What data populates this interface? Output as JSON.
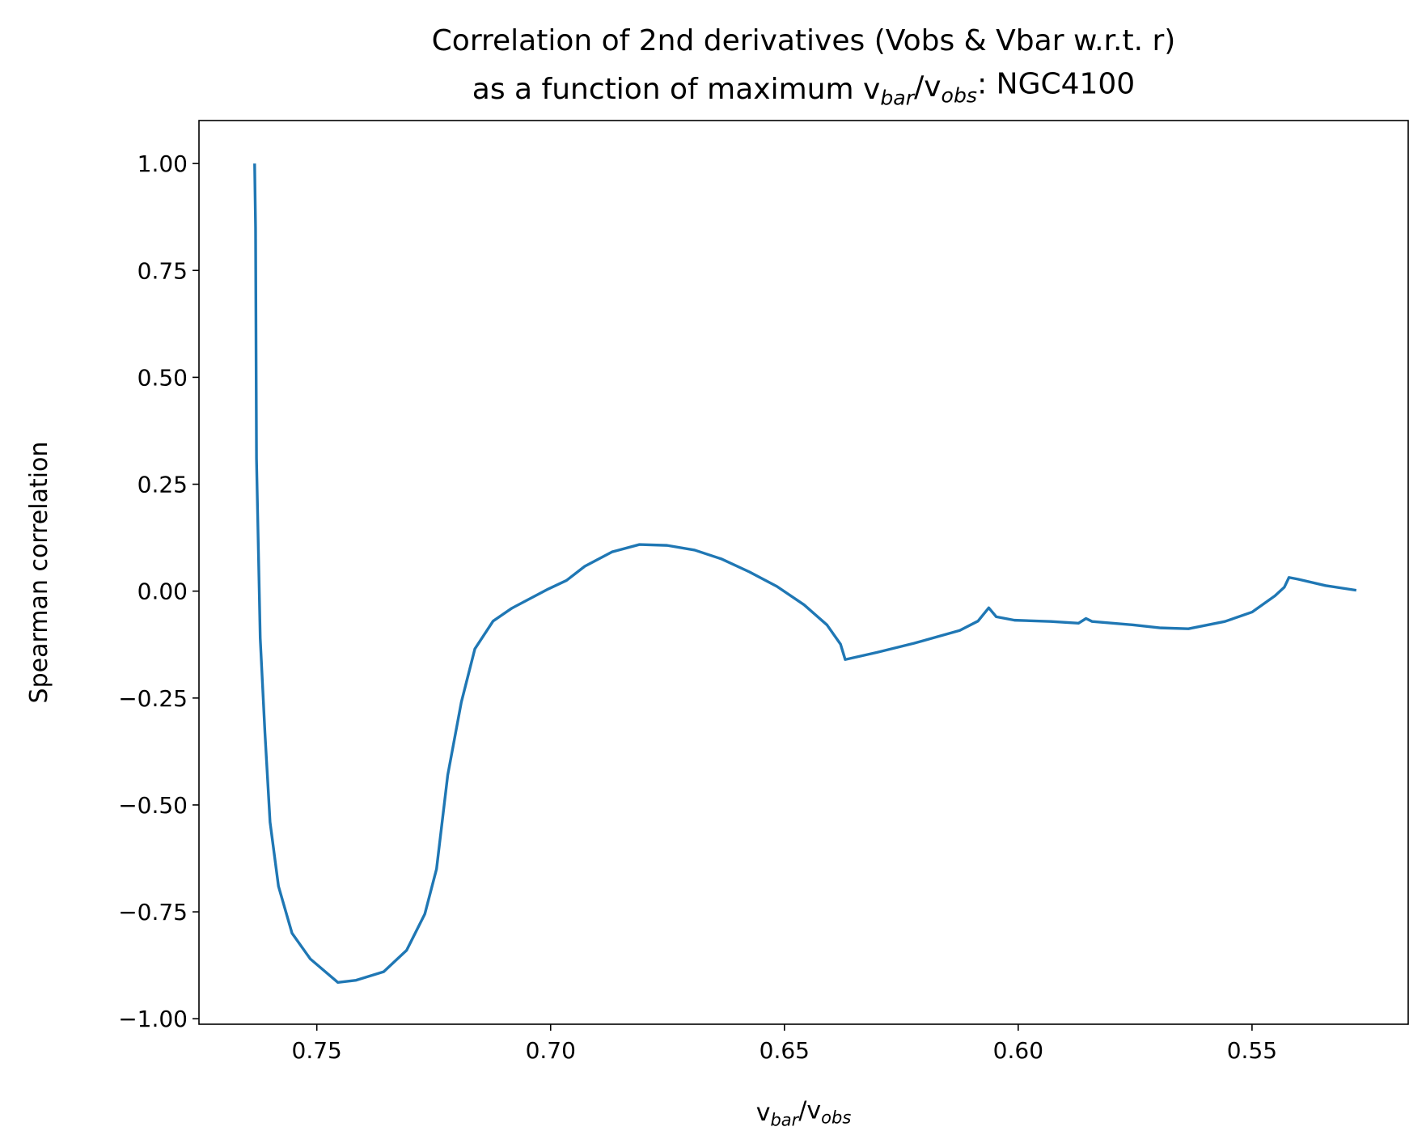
{
  "chart_data": {
    "type": "line",
    "title": [
      "Correlation of 2nd derivatives (Vobs & Vbar w.r.t. r)",
      [
        "as a function of maximum v",
        "bar",
        "/v",
        "obs",
        ": NGC4100"
      ]
    ],
    "xlabel": [
      "v",
      "bar",
      "/v",
      "obs"
    ],
    "ylabel": "Spearman correlation",
    "x": [
      0.7633,
      0.7631,
      0.7629,
      0.7621,
      0.7611,
      0.76,
      0.7582,
      0.7553,
      0.7514,
      0.7455,
      0.7416,
      0.7357,
      0.7308,
      0.7269,
      0.7244,
      0.722,
      0.7191,
      0.7162,
      0.7123,
      0.7083,
      0.7005,
      0.6966,
      0.6927,
      0.6868,
      0.681,
      0.6751,
      0.6692,
      0.6634,
      0.6575,
      0.6516,
      0.6458,
      0.6409,
      0.638,
      0.637,
      0.6301,
      0.6223,
      0.6125,
      0.6086,
      0.6063,
      0.6047,
      0.6008,
      0.593,
      0.5871,
      0.5855,
      0.5842,
      0.5754,
      0.5695,
      0.5636,
      0.5558,
      0.55,
      0.5451,
      0.5431,
      0.5421,
      0.5402,
      0.5343,
      0.5277
    ],
    "series": [
      {
        "name": "Spearman correlation",
        "color": "#1f77b4",
        "values": [
          1.0,
          0.85,
          0.31,
          -0.11,
          -0.33,
          -0.54,
          -0.69,
          -0.8,
          -0.86,
          -0.915,
          -0.91,
          -0.89,
          -0.84,
          -0.755,
          -0.65,
          -0.43,
          -0.26,
          -0.135,
          -0.07,
          -0.04,
          0.005,
          0.025,
          0.058,
          0.092,
          0.109,
          0.107,
          0.096,
          0.075,
          0.045,
          0.011,
          -0.032,
          -0.079,
          -0.124,
          -0.16,
          -0.143,
          -0.122,
          -0.092,
          -0.07,
          -0.039,
          -0.06,
          -0.068,
          -0.071,
          -0.075,
          -0.064,
          -0.071,
          -0.079,
          -0.086,
          -0.088,
          -0.071,
          -0.049,
          -0.011,
          0.009,
          0.032,
          0.028,
          0.013,
          0.002
        ]
      }
    ],
    "xlim": [
      0.7752,
      0.5166
    ],
    "ylim": [
      -1.0128,
      1.1005
    ],
    "xticks": [
      {
        "value": 0.75,
        "label": "0.75"
      },
      {
        "value": 0.7,
        "label": "0.70"
      },
      {
        "value": 0.65,
        "label": "0.65"
      },
      {
        "value": 0.6,
        "label": "0.60"
      },
      {
        "value": 0.55,
        "label": "0.55"
      }
    ],
    "yticks": [
      {
        "value": -1,
        "label": "−1.00"
      },
      {
        "value": -0.75,
        "label": "−0.75"
      },
      {
        "value": -0.5,
        "label": "−0.50"
      },
      {
        "value": -0.25,
        "label": "−0.25"
      },
      {
        "value": 0,
        "label": "0.00"
      },
      {
        "value": 0.25,
        "label": "0.25"
      },
      {
        "value": 0.5,
        "label": "0.50"
      },
      {
        "value": 0.75,
        "label": "0.75"
      },
      {
        "value": 1,
        "label": "1.00"
      }
    ],
    "grid": false
  }
}
